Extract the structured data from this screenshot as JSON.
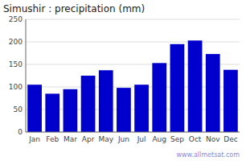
{
  "chart_data": {
    "type": "bar",
    "title": "Simushir : precipitation (mm)",
    "categories": [
      "Jan",
      "Feb",
      "Mar",
      "Apr",
      "May",
      "Jun",
      "Jul",
      "Aug",
      "Sep",
      "Oct",
      "Nov",
      "Dec"
    ],
    "values": [
      105,
      85,
      95,
      125,
      137,
      98,
      105,
      153,
      195,
      203,
      173,
      138
    ],
    "color": "#0000CC",
    "ylim": [
      0,
      250
    ],
    "yticks": [
      0,
      50,
      100,
      150,
      200,
      250
    ],
    "grid": true,
    "annotations": [
      "www.allmetsat.com"
    ]
  }
}
